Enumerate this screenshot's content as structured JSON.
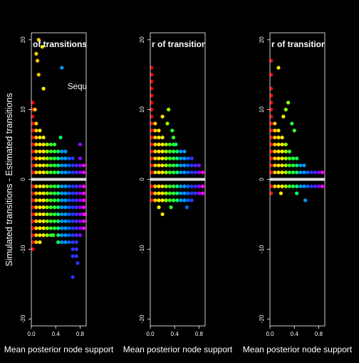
{
  "ylabel": "Simulated transitions - Estimated transitions",
  "colors": {
    "background": "#000000",
    "foreground": "#ffffff",
    "ramp": [
      "#ff0000",
      "#ffcc00",
      "#ffee00",
      "#99ff00",
      "#33ff33",
      "#00ff66",
      "#0099ff",
      "#0066ff",
      "#3333ff",
      "#9900ff",
      "#ff00ff"
    ]
  },
  "chart_data": [
    {
      "type": "scatter",
      "title_fragment": "of transitions",
      "annotation": "Sequ",
      "xlabel": "Mean posterior node support",
      "xlim": [
        0,
        0.9
      ],
      "ylim": [
        -21,
        21
      ],
      "xticks": [
        "0.0",
        "0.4",
        "0.8"
      ],
      "yticks": [
        "-20",
        "-10",
        "0",
        "10",
        "20"
      ],
      "reference_line_y": 0,
      "bands": [
        {
          "x": 0.02,
          "ymin": -10,
          "ymax": 11
        },
        {
          "x": 0.08,
          "ymin": -9,
          "ymax": 8
        },
        {
          "x": 0.14,
          "ymin": -9,
          "ymax": 7
        },
        {
          "x": 0.2,
          "ymin": -8,
          "ymax": 6
        },
        {
          "x": 0.26,
          "ymin": -8,
          "ymax": 5
        },
        {
          "x": 0.32,
          "ymin": -8,
          "ymax": 5
        },
        {
          "x": 0.38,
          "ymin": -7,
          "ymax": 5
        },
        {
          "x": 0.44,
          "ymin": -9,
          "ymax": 4
        },
        {
          "x": 0.5,
          "ymin": -9,
          "ymax": 4
        },
        {
          "x": 0.56,
          "ymin": -9,
          "ymax": 4
        },
        {
          "x": 0.62,
          "ymin": -9,
          "ymax": 3
        },
        {
          "x": 0.68,
          "ymin": -11,
          "ymax": 3
        },
        {
          "x": 0.74,
          "ymin": -11,
          "ymax": 2
        },
        {
          "x": 0.8,
          "ymin": -8,
          "ymax": 3
        },
        {
          "x": 0.86,
          "ymin": -7,
          "ymax": 2
        }
      ],
      "extra_points": [
        {
          "x": 0.12,
          "y": 20
        },
        {
          "x": 0.18,
          "y": 19
        },
        {
          "x": 0.08,
          "y": 18
        },
        {
          "x": 0.1,
          "y": 17
        },
        {
          "x": 0.12,
          "y": 15
        },
        {
          "x": 0.5,
          "y": 16
        },
        {
          "x": 0.2,
          "y": 13
        },
        {
          "x": 0.06,
          "y": 10
        },
        {
          "x": 0.48,
          "y": 6
        },
        {
          "x": 0.68,
          "y": -14
        },
        {
          "x": 0.76,
          "y": -12
        },
        {
          "x": 0.8,
          "y": 5
        },
        {
          "x": 0.36,
          "y": -8
        },
        {
          "x": 0.88,
          "y": -5
        }
      ]
    },
    {
      "type": "scatter",
      "title_fragment": "r of transitions",
      "xlabel": "Mean posterior node support",
      "xlim": [
        0,
        0.9
      ],
      "ylim": [
        -21,
        21
      ],
      "xticks": [
        "0.0",
        "0.4",
        "0.8"
      ],
      "yticks": [
        "-20",
        "-10",
        "0",
        "10",
        "20"
      ],
      "reference_line_y": 0,
      "bands": [
        {
          "x": 0.02,
          "ymin": -3,
          "ymax": 13
        },
        {
          "x": 0.08,
          "ymin": -3,
          "ymax": 8
        },
        {
          "x": 0.14,
          "ymin": -3,
          "ymax": 7
        },
        {
          "x": 0.2,
          "ymin": -3,
          "ymax": 6
        },
        {
          "x": 0.26,
          "ymin": -3,
          "ymax": 5
        },
        {
          "x": 0.32,
          "ymin": -3,
          "ymax": 5
        },
        {
          "x": 0.38,
          "ymin": -3,
          "ymax": 5
        },
        {
          "x": 0.44,
          "ymin": -3,
          "ymax": 4
        },
        {
          "x": 0.5,
          "ymin": -3,
          "ymax": 4
        },
        {
          "x": 0.56,
          "ymin": -3,
          "ymax": 4
        },
        {
          "x": 0.62,
          "ymin": -3,
          "ymax": 3
        },
        {
          "x": 0.68,
          "ymin": -3,
          "ymax": 3
        },
        {
          "x": 0.74,
          "ymin": -2,
          "ymax": 2
        },
        {
          "x": 0.8,
          "ymin": -2,
          "ymax": 2
        },
        {
          "x": 0.86,
          "ymin": -2,
          "ymax": 1
        }
      ],
      "extra_points": [
        {
          "x": 0.02,
          "y": 16
        },
        {
          "x": 0.02,
          "y": 15
        },
        {
          "x": 0.02,
          "y": 14
        },
        {
          "x": 0.3,
          "y": 10
        },
        {
          "x": 0.2,
          "y": 9
        },
        {
          "x": 0.28,
          "y": 8
        },
        {
          "x": 0.36,
          "y": 7
        },
        {
          "x": 0.38,
          "y": 6
        },
        {
          "x": 0.42,
          "y": 5
        },
        {
          "x": 0.14,
          "y": -4
        },
        {
          "x": 0.34,
          "y": -4
        },
        {
          "x": 0.6,
          "y": -4
        },
        {
          "x": 0.2,
          "y": -5
        }
      ]
    },
    {
      "type": "scatter",
      "title_fragment": "r of transitions",
      "xlabel": "Mean posterior node support",
      "xlim": [
        0,
        0.9
      ],
      "ylim": [
        -21,
        21
      ],
      "xticks": [
        "0.0",
        "0.4",
        "0.8"
      ],
      "yticks": [
        "-20",
        "-10",
        "0",
        "10",
        "20"
      ],
      "reference_line_y": 0,
      "bands": [
        {
          "x": 0.02,
          "ymin": -2,
          "ymax": 13
        },
        {
          "x": 0.08,
          "ymin": -1,
          "ymax": 8
        },
        {
          "x": 0.14,
          "ymin": -1,
          "ymax": 7
        },
        {
          "x": 0.2,
          "ymin": -1,
          "ymax": 6
        },
        {
          "x": 0.26,
          "ymin": -1,
          "ymax": 5
        },
        {
          "x": 0.32,
          "ymin": -1,
          "ymax": 4
        },
        {
          "x": 0.38,
          "ymin": -1,
          "ymax": 3
        },
        {
          "x": 0.44,
          "ymin": -1,
          "ymax": 3
        },
        {
          "x": 0.5,
          "ymin": -1,
          "ymax": 2
        },
        {
          "x": 0.56,
          "ymin": -1,
          "ymax": 2
        },
        {
          "x": 0.62,
          "ymin": -1,
          "ymax": 1
        },
        {
          "x": 0.68,
          "ymin": -1,
          "ymax": 1
        },
        {
          "x": 0.74,
          "ymin": -1,
          "ymax": 1
        },
        {
          "x": 0.8,
          "ymin": -1,
          "ymax": 1
        },
        {
          "x": 0.86,
          "ymin": -1,
          "ymax": 1
        }
      ],
      "extra_points": [
        {
          "x": 0.02,
          "y": 17
        },
        {
          "x": 0.14,
          "y": 16
        },
        {
          "x": 0.02,
          "y": 15
        },
        {
          "x": 0.3,
          "y": 11
        },
        {
          "x": 0.26,
          "y": 10
        },
        {
          "x": 0.22,
          "y": 9
        },
        {
          "x": 0.36,
          "y": 8
        },
        {
          "x": 0.4,
          "y": 7
        },
        {
          "x": 0.18,
          "y": -2
        },
        {
          "x": 0.44,
          "y": -2
        },
        {
          "x": 0.58,
          "y": -3
        }
      ]
    }
  ]
}
